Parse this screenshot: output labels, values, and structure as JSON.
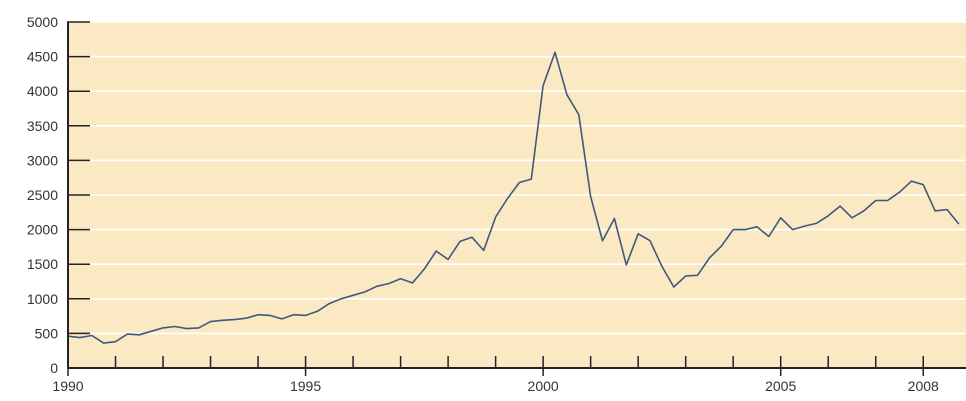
{
  "chart_data": {
    "type": "line",
    "title": "",
    "xlabel": "",
    "ylabel": "",
    "xlim": [
      1990,
      2008.9
    ],
    "ylim": [
      0,
      5000
    ],
    "y_ticks": [
      0,
      500,
      1000,
      1500,
      2000,
      2500,
      3000,
      3500,
      4000,
      4500,
      5000
    ],
    "y_tick_labels": [
      "0",
      "500",
      "1000",
      "1500",
      "2000",
      "2500",
      "3000",
      "3500",
      "4000",
      "4500",
      "5000"
    ],
    "x_major_ticks": [
      1990,
      1995,
      2000,
      2005,
      2008
    ],
    "x_major_tick_labels": [
      "1990",
      "1995",
      "2000",
      "2005",
      "2008"
    ],
    "x_minor_ticks": [
      1991,
      1992,
      1993,
      1994,
      1996,
      1997,
      1998,
      1999,
      2001,
      2002,
      2003,
      2004,
      2006,
      2007
    ],
    "grid": "horizontal",
    "legend": "none",
    "colors": {
      "plot_background": "#fbe9c4",
      "grid": "#ffffff",
      "line": "#40597a",
      "axis": "#222222"
    },
    "series": [
      {
        "x": [
          1990.0,
          1990.25,
          1990.5,
          1990.75,
          1991.0,
          1991.25,
          1991.5,
          1991.75,
          1992.0,
          1992.25,
          1992.5,
          1992.75,
          1993.0,
          1993.25,
          1993.5,
          1993.75,
          1994.0,
          1994.25,
          1994.5,
          1994.75,
          1995.0,
          1995.25,
          1995.5,
          1995.75,
          1996.0,
          1996.25,
          1996.5,
          1996.75,
          1997.0,
          1997.25,
          1997.5,
          1997.75,
          1998.0,
          1998.25,
          1998.5,
          1998.75,
          1999.0,
          1999.25,
          1999.5,
          1999.75,
          2000.0,
          2000.25,
          2000.5,
          2000.75,
          2001.0,
          2001.25,
          2001.5,
          2001.75,
          2002.0,
          2002.25,
          2002.5,
          2002.75,
          2003.0,
          2003.25,
          2003.5,
          2003.75,
          2004.0,
          2004.25,
          2004.5,
          2004.75,
          2005.0,
          2005.25,
          2005.5,
          2005.75,
          2006.0,
          2006.25,
          2006.5,
          2006.75,
          2007.0,
          2007.25,
          2007.5,
          2007.75,
          2008.0,
          2008.25,
          2008.5,
          2008.75
        ],
        "y": [
          460,
          440,
          470,
          360,
          380,
          490,
          480,
          530,
          580,
          600,
          570,
          580,
          670,
          690,
          700,
          720,
          770,
          760,
          710,
          770,
          760,
          820,
          930,
          1000,
          1050,
          1100,
          1180,
          1220,
          1290,
          1230,
          1430,
          1690,
          1570,
          1830,
          1890,
          1700,
          2180,
          2450,
          2680,
          2730,
          4080,
          4560,
          3950,
          3660,
          2480,
          1840,
          2160,
          1490,
          1940,
          1840,
          1470,
          1170,
          1330,
          1340,
          1590,
          1760,
          2000,
          2000,
          2040,
          1900,
          2170,
          2000,
          2050,
          2090,
          2200,
          2340,
          2170,
          2270,
          2420,
          2420,
          2540,
          2700,
          2650,
          2270,
          2290,
          2080
        ]
      }
    ]
  }
}
